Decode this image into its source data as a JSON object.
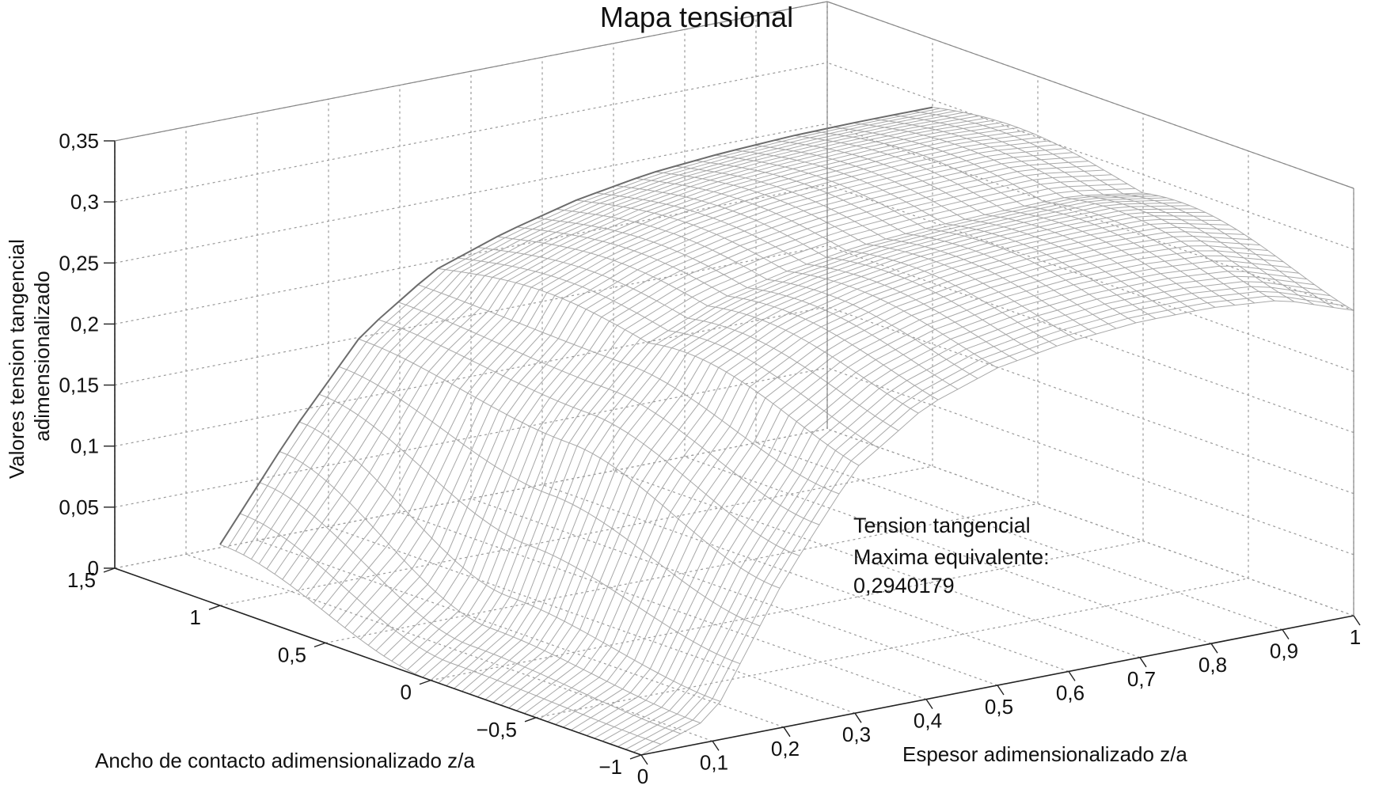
{
  "chart_data": {
    "type": "surface",
    "title": "Mapa tensional",
    "zlabel_lines": [
      "Valores tension tangencial",
      "adimensionalizado"
    ],
    "xlabel": "Espesor adimensionalizado z/a",
    "ylabel": "Ancho de contacto adimensionalizado z/a",
    "x_ticks": [
      "0",
      "0,1",
      "0,2",
      "0,3",
      "0,4",
      "0,5",
      "0,6",
      "0,7",
      "0,8",
      "0,9",
      "1"
    ],
    "y_ticks": [
      "1,5",
      "1",
      "0,5",
      "0",
      "−0,5",
      "−1"
    ],
    "z_ticks": [
      "0",
      "0,05",
      "0,1",
      "0,15",
      "0,2",
      "0,25",
      "0,3",
      "0,35"
    ],
    "xlim": [
      0,
      1
    ],
    "ylim": [
      -1,
      1.5
    ],
    "zlim": [
      0,
      0.35
    ],
    "grid": true,
    "surface_style": "wireframe mesh, light gray",
    "surface_samples": {
      "x": [
        0,
        0.1,
        0.2,
        0.3,
        0.4,
        0.5,
        0.6,
        0.7,
        0.8,
        0.9,
        1
      ],
      "y_edge_pos": [
        0.05,
        0.13,
        0.2,
        0.24,
        0.26,
        0.275,
        0.285,
        0.29,
        0.293,
        0.294,
        0.294
      ],
      "y_zero": [
        0.0,
        0.04,
        0.18,
        0.24,
        0.265,
        0.278,
        0.287,
        0.291,
        0.293,
        0.294,
        0.285
      ],
      "y_edge_neg": [
        0.0,
        0.02,
        0.12,
        0.2,
        0.24,
        0.26,
        0.27,
        0.275,
        0.275,
        0.27,
        0.25
      ]
    },
    "annotation_lines": [
      "Tension tangencial",
      "Maxima equivalente:",
      "0,2940179"
    ],
    "colors": {
      "mesh": "#a8a8a8",
      "mesh_ridge": "#6c6c6c",
      "grid": "#9a9a9a",
      "axes": "#222222"
    }
  }
}
